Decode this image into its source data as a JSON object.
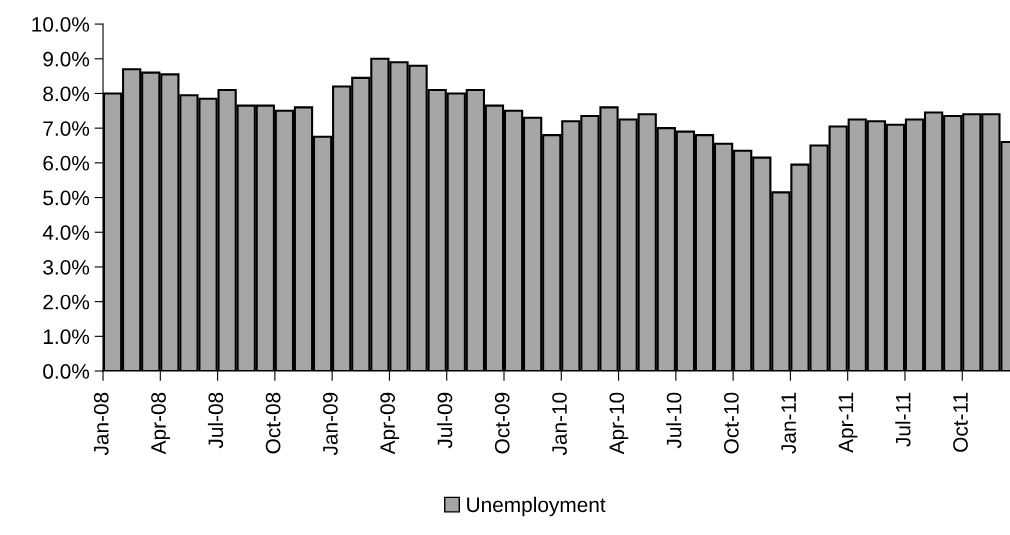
{
  "chart_data": {
    "type": "bar",
    "categories": [
      "Jan-08",
      null,
      null,
      "Apr-08",
      null,
      null,
      "Jul-08",
      null,
      null,
      "Oct-08",
      null,
      null,
      "Jan-09",
      null,
      null,
      "Apr-09",
      null,
      null,
      "Jul-09",
      null,
      null,
      "Oct-09",
      null,
      null,
      "Jan-10",
      null,
      null,
      "Apr-10",
      null,
      null,
      "Jul-10",
      null,
      null,
      "Oct-10",
      null,
      null,
      "Jan-11",
      null,
      null,
      "Apr-11",
      null,
      null,
      "Jul-11",
      null,
      null,
      "Oct-11",
      null,
      null
    ],
    "series": [
      {
        "name": "Unemployment",
        "color": "#a6a6a6",
        "values": [
          8.0,
          8.7,
          8.6,
          8.55,
          7.95,
          7.85,
          8.1,
          7.65,
          7.65,
          7.5,
          7.6,
          6.75,
          8.2,
          8.45,
          9.0,
          8.9,
          8.8,
          8.1,
          8.0,
          8.1,
          7.65,
          7.5,
          7.3,
          6.8,
          7.2,
          7.35,
          7.6,
          7.25,
          7.4,
          7.0,
          6.9,
          6.8,
          6.55,
          6.35,
          6.15,
          5.15,
          5.95,
          6.5,
          7.05,
          7.25,
          7.2,
          7.1,
          7.25,
          7.45,
          7.35,
          7.4,
          7.4,
          6.6
        ]
      }
    ],
    "ylim": [
      0,
      10
    ],
    "yticks": [
      {
        "value": 0,
        "label": "0.0%"
      },
      {
        "value": 1,
        "label": "1.0%"
      },
      {
        "value": 2,
        "label": "2.0%"
      },
      {
        "value": 3,
        "label": "3.0%"
      },
      {
        "value": 4,
        "label": "4.0%"
      },
      {
        "value": 5,
        "label": "5.0%"
      },
      {
        "value": 6,
        "label": "6.0%"
      },
      {
        "value": 7,
        "label": "7.0%"
      },
      {
        "value": 8,
        "label": "8.0%"
      },
      {
        "value": 9,
        "label": "9.0%"
      },
      {
        "value": 10,
        "label": "10.0%"
      }
    ],
    "grid": false,
    "legend": "bottom"
  }
}
